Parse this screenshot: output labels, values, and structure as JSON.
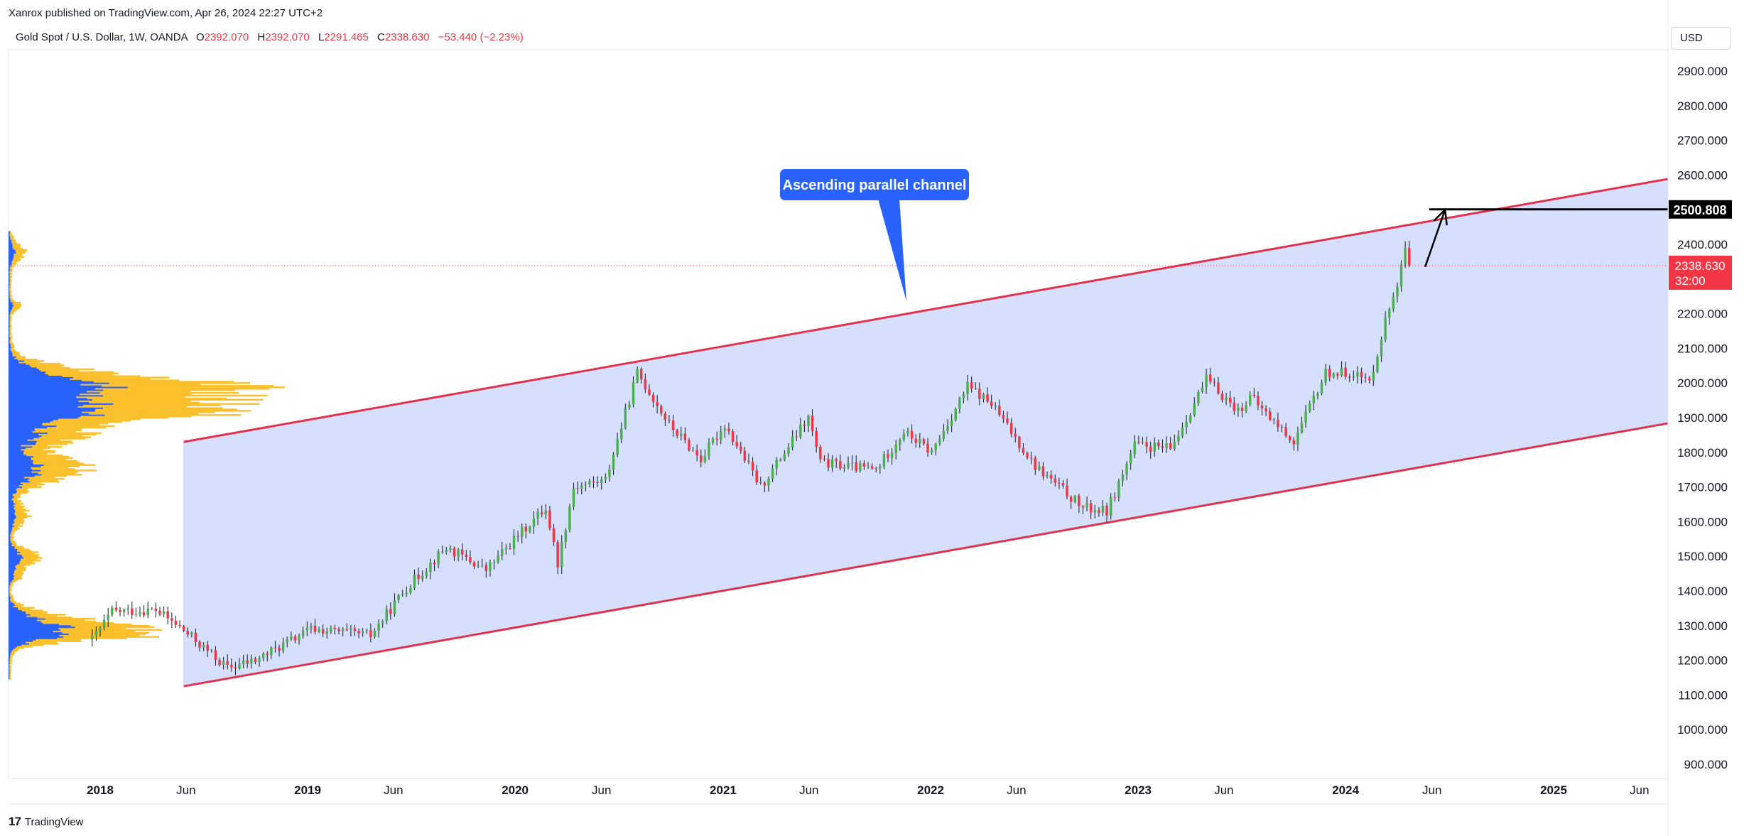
{
  "header": {
    "publisher_line": "Xanrox published on TradingView.com, Apr 26, 2024 22:27 UTC+2",
    "symbol_line": "Gold Spot / U.S. Dollar, 1W, OANDA",
    "ohlc": [
      {
        "label": "O",
        "value": "2392.070"
      },
      {
        "label": "H",
        "value": "2392.070"
      },
      {
        "label": "L",
        "value": "2291.465"
      },
      {
        "label": "C",
        "value": "2338.630"
      }
    ],
    "change": "−53.440 (−2.23%)"
  },
  "currency_button": "USD",
  "footer": {
    "brand": "TradingView",
    "logo_glyph": "17"
  },
  "colors": {
    "up": "#089981",
    "up_body": "#4caf50",
    "down": "#f23645",
    "channel_line": "#e0334f",
    "channel_fill": "#d4ddfb",
    "callout": "#2962ff",
    "volume_profile_up": "#2962ff",
    "volume_profile_down": "#fbc02d"
  },
  "chart_data": {
    "type": "candlestick",
    "timeframe": "1W",
    "x_axis_labels": [
      "2018",
      "Jun",
      "2019",
      "Jun",
      "2020",
      "Jun",
      "2021",
      "Jun",
      "2022",
      "Jun",
      "2023",
      "Jun",
      "2024",
      "Jun",
      "2025",
      "Jun"
    ],
    "x_axis_label_dates": [
      "2018-01-01",
      "2018-06-01",
      "2019-01-01",
      "2019-06-01",
      "2020-01-01",
      "2020-06-01",
      "2021-01-01",
      "2021-06-01",
      "2022-01-01",
      "2022-06-01",
      "2023-01-01",
      "2023-06-01",
      "2024-01-01",
      "2024-06-01",
      "2025-01-01",
      "2025-06-01"
    ],
    "y_axis_labels": [
      "900.000",
      "1000.000",
      "1100.000",
      "1200.000",
      "1300.000",
      "1400.000",
      "1500.000",
      "1600.000",
      "1700.000",
      "1800.000",
      "1900.000",
      "2000.000",
      "2100.000",
      "2200.000",
      "2300.000",
      "2400.000",
      "2500.000",
      "2600.000",
      "2700.000",
      "2800.000",
      "2900.000"
    ],
    "y_axis_values": [
      900,
      1000,
      1100,
      1200,
      1300,
      1400,
      1500,
      1600,
      1700,
      1800,
      1900,
      2000,
      2100,
      2200,
      2300,
      2400,
      2500,
      2600,
      2700,
      2800,
      2900
    ],
    "price_path_keypoints": [
      [
        "2017-12-18",
        1260
      ],
      [
        "2018-01-22",
        1340
      ],
      [
        "2018-04-09",
        1345
      ],
      [
        "2018-05-21",
        1295
      ],
      [
        "2018-08-13",
        1178
      ],
      [
        "2018-10-01",
        1200
      ],
      [
        "2019-01-07",
        1290
      ],
      [
        "2019-04-22",
        1272
      ],
      [
        "2019-06-24",
        1410
      ],
      [
        "2019-09-02",
        1525
      ],
      [
        "2019-11-11",
        1460
      ],
      [
        "2020-01-06",
        1560
      ],
      [
        "2020-02-24",
        1640
      ],
      [
        "2020-03-16",
        1480
      ],
      [
        "2020-04-13",
        1700
      ],
      [
        "2020-06-08",
        1720
      ],
      [
        "2020-08-03",
        2030
      ],
      [
        "2020-09-28",
        1880
      ],
      [
        "2020-11-23",
        1780
      ],
      [
        "2021-01-04",
        1880
      ],
      [
        "2021-03-08",
        1700
      ],
      [
        "2021-05-31",
        1900
      ],
      [
        "2021-06-21",
        1770
      ],
      [
        "2021-09-27",
        1750
      ],
      [
        "2021-11-15",
        1860
      ],
      [
        "2022-01-03",
        1800
      ],
      [
        "2022-03-07",
        1990
      ],
      [
        "2022-04-18",
        1940
      ],
      [
        "2022-07-04",
        1760
      ],
      [
        "2022-09-26",
        1640
      ],
      [
        "2022-11-07",
        1630
      ],
      [
        "2022-12-26",
        1820
      ],
      [
        "2023-02-27",
        1810
      ],
      [
        "2023-05-01",
        2010
      ],
      [
        "2023-06-26",
        1920
      ],
      [
        "2023-07-17",
        1960
      ],
      [
        "2023-10-02",
        1830
      ],
      [
        "2023-11-27",
        2030
      ],
      [
        "2024-01-15",
        2030
      ],
      [
        "2024-02-12",
        2000
      ],
      [
        "2024-03-11",
        2180
      ],
      [
        "2024-04-08",
        2330
      ],
      [
        "2024-04-15",
        2392
      ],
      [
        "2024-04-22",
        2338.63
      ]
    ],
    "last_price": "2338.630",
    "countdown": "32:00",
    "annotations": {
      "callout_text": "Ascending parallel channel",
      "target_price": "2500.808",
      "channel_upper": [
        [
          "2018-05-28",
          1830
        ],
        [
          "2025-10-20",
          2615
        ]
      ],
      "channel_lower": [
        [
          "2018-05-28",
          1125
        ],
        [
          "2025-10-20",
          1910
        ]
      ],
      "target_line_start": "2024-05-27",
      "target_arrow": [
        [
          "2024-05-20",
          2335
        ],
        [
          "2024-06-24",
          2500
        ]
      ]
    },
    "volume_profile": true
  }
}
